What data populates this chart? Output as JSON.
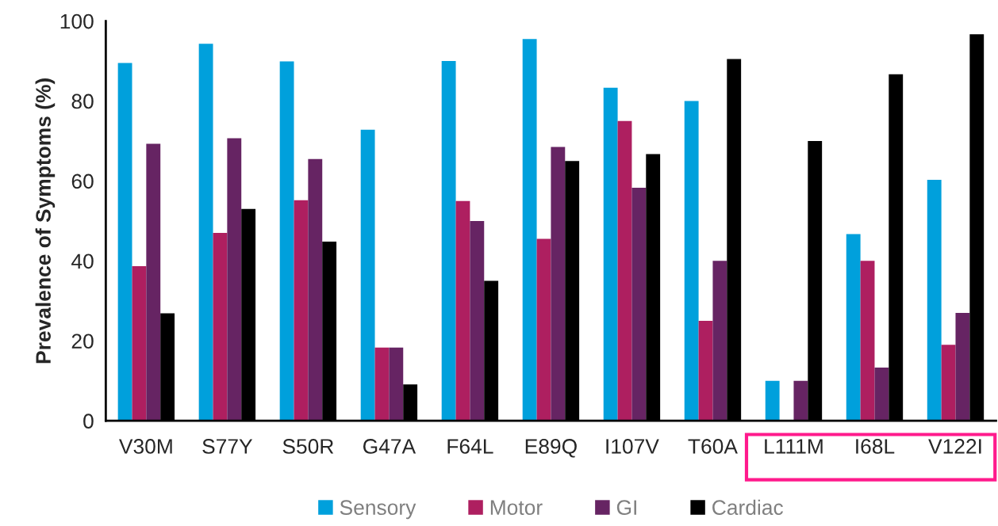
{
  "chart_data": {
    "type": "bar",
    "ylabel": "Prevalence of Symptoms (%)",
    "categories": [
      "V30M",
      "S77Y",
      "S50R",
      "G47A",
      "F64L",
      "E89Q",
      "I107V",
      "T60A",
      "L111M",
      "I68L",
      "V122I"
    ],
    "series": [
      {
        "name": "Sensory",
        "color": "#00a0dc",
        "values": [
          89.5,
          94.3,
          89.9,
          72.8,
          90,
          95.5,
          83.3,
          80,
          10,
          46.7,
          60.3
        ]
      },
      {
        "name": "Motor",
        "color": "#ae1f60",
        "values": [
          38.7,
          47,
          55.2,
          18.3,
          55,
          45.5,
          75,
          25,
          0,
          40,
          19
        ]
      },
      {
        "name": "GI",
        "color": "#662463",
        "values": [
          69.3,
          70.7,
          65.5,
          18.3,
          50,
          68.5,
          58.3,
          40,
          10,
          13.3,
          27
        ]
      },
      {
        "name": "Cardiac",
        "color": "#000000",
        "values": [
          26.9,
          53,
          44.8,
          9.1,
          35,
          65,
          66.7,
          90.5,
          70,
          86.7,
          96.7
        ]
      }
    ],
    "ylim": [
      0,
      100
    ],
    "yticks": [
      0,
      20,
      40,
      60,
      80,
      100
    ],
    "grid": false,
    "legend": "bottom"
  }
}
